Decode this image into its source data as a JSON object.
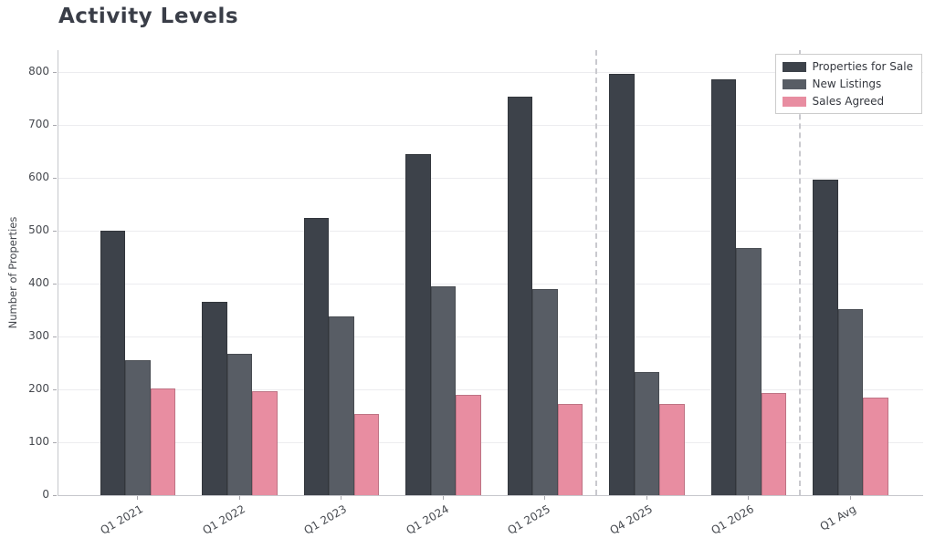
{
  "title": "Activity Levels",
  "chart_data": {
    "type": "bar",
    "title": "Activity Levels",
    "categories": [
      "Q1 2021",
      "Q1 2022",
      "Q1 2023",
      "Q1 2024",
      "Q1 2025",
      "Q4 2025",
      "Q1 2026",
      "Q1 Avg"
    ],
    "series": [
      {
        "name": "Properties for Sale",
        "color": "#3d424a",
        "values": [
          500,
          365,
          525,
          645,
          753,
          797,
          787,
          596
        ]
      },
      {
        "name": "New Listings",
        "color": "#585d65",
        "values": [
          255,
          268,
          338,
          395,
          390,
          232,
          468,
          352
        ]
      },
      {
        "name": "Sales Agreed",
        "color": "#e88da1",
        "values": [
          201,
          196,
          153,
          190,
          172,
          173,
          193,
          184
        ]
      }
    ],
    "xlabel": "",
    "ylabel": "Number of Properties",
    "yticks": [
      0,
      100,
      200,
      300,
      400,
      500,
      600,
      700,
      800
    ],
    "ylim": [
      0,
      841
    ],
    "grid": true,
    "legend_position": "upper right",
    "separator_after_indices": [
      4,
      6
    ]
  },
  "colors": {
    "title_text": "#3a3e48",
    "axis_text": "#46494f",
    "gridline": "#ececef",
    "spine": "#c6c7cc",
    "separator": "#c9c9ce",
    "background": "#ffffff",
    "legend_border": "#cccccc"
  }
}
